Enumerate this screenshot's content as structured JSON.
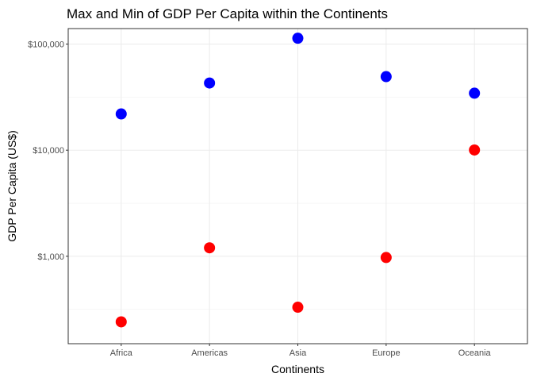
{
  "chart_data": {
    "type": "scatter",
    "title": "Max and Min of GDP Per Capita within the Continents",
    "xlabel": "Continents",
    "ylabel": "GDP Per Capita (US$)",
    "categories": [
      "Africa",
      "Americas",
      "Asia",
      "Europe",
      "Oceania"
    ],
    "y_scale": "log10",
    "ylim": [
      150,
      140000
    ],
    "y_ticks": [
      1000,
      10000,
      100000
    ],
    "y_tick_labels": [
      "$1,000",
      "$10,000",
      "$100,000"
    ],
    "grid": true,
    "legend": "none",
    "series": [
      {
        "color": "#0000ff",
        "values": [
          21951,
          42952,
          113523,
          49357,
          34435
        ]
      },
      {
        "color": "#ff0000",
        "values": [
          241,
          1202,
          331,
          974,
          10040
        ]
      }
    ]
  }
}
